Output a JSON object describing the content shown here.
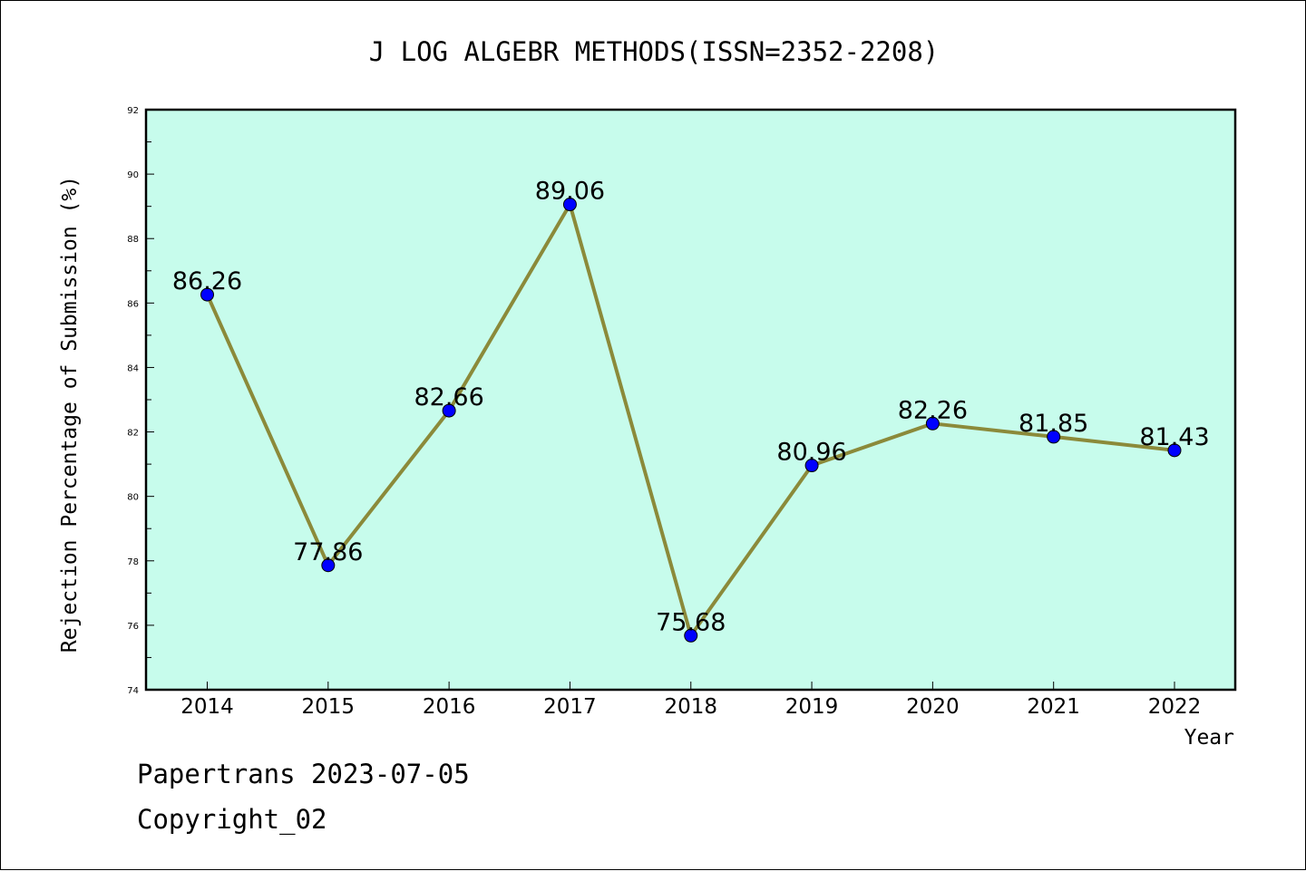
{
  "chart_data": {
    "type": "line",
    "title": "J LOG ALGEBR METHODS(ISSN=2352-2208)",
    "xlabel": "Year",
    "ylabel": "Rejection Percentage of Submission (%)",
    "categories": [
      "2014",
      "2015",
      "2016",
      "2017",
      "2018",
      "2019",
      "2020",
      "2021",
      "2022"
    ],
    "values": [
      86.26,
      77.86,
      82.66,
      89.06,
      75.68,
      80.96,
      82.26,
      81.85,
      81.43
    ],
    "value_labels": [
      "86.26",
      "77.86",
      "82.66",
      "89.06",
      "75.68",
      "80.96",
      "82.26",
      "81.85",
      "81.43"
    ],
    "ylim": [
      74,
      92
    ],
    "yticks": [
      "74",
      "76",
      "78",
      "80",
      "82",
      "84",
      "86",
      "88",
      "90",
      "92"
    ],
    "grid": false,
    "colors": {
      "plot_background": "#c7fcec",
      "line": "#8b8a3a",
      "marker": "#0000ff",
      "axis": "#000000"
    }
  },
  "footer": {
    "line1": "Papertrans 2023-07-05",
    "line2": "Copyright_02"
  }
}
